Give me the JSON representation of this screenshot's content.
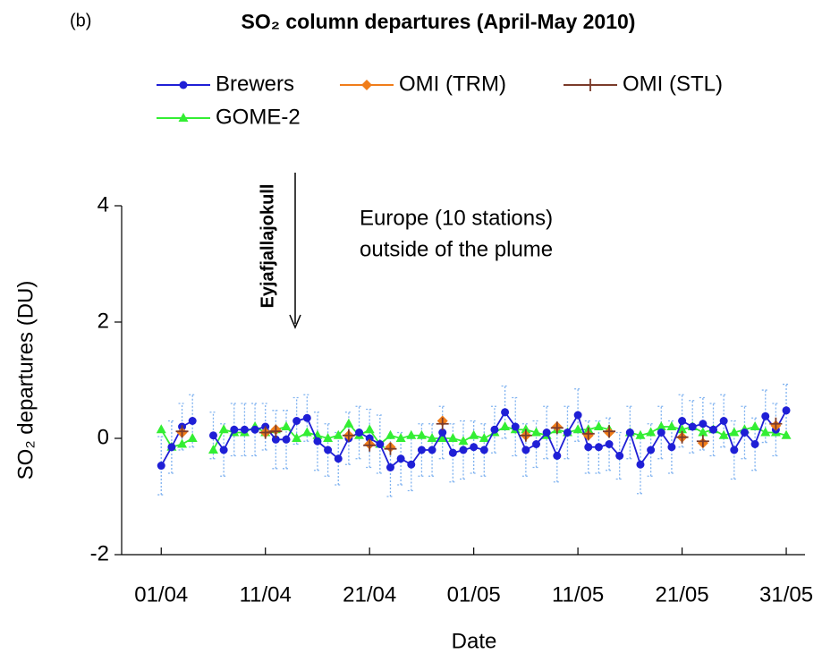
{
  "chart_data": {
    "type": "line",
    "panel_label": "(b)",
    "title": "SO₂ column departures (April-May 2010)",
    "x_label": "Date",
    "y_label": "SO₂ departures (DU)",
    "annotations": {
      "volcano": "Eyjafjallajokull",
      "region": [
        "Europe (10 stations)",
        "outside of the plume"
      ]
    },
    "x": [
      0,
      1,
      2,
      3,
      4,
      5,
      6,
      7,
      8,
      9,
      10,
      11,
      12,
      13,
      14,
      15,
      16,
      17,
      18,
      19,
      20,
      21,
      22,
      23,
      24,
      25,
      26,
      27,
      28,
      29,
      30,
      31,
      32,
      33,
      34,
      35,
      36,
      37,
      38,
      39,
      40,
      41,
      42,
      43,
      44,
      45,
      46,
      47,
      48,
      49,
      50,
      51,
      52,
      53,
      54,
      55,
      56,
      57,
      58,
      59,
      60
    ],
    "xlim": [
      -3.8,
      61.8
    ],
    "xticks": [
      {
        "value": 0,
        "label": "01/04"
      },
      {
        "value": 10,
        "label": "11/04"
      },
      {
        "value": 20,
        "label": "21/04"
      },
      {
        "value": 30,
        "label": "01/05"
      },
      {
        "value": 40,
        "label": "11/05"
      },
      {
        "value": 50,
        "label": "21/05"
      },
      {
        "value": 60,
        "label": "31/05"
      }
    ],
    "ylim": [
      -2,
      4
    ],
    "yticks": [
      -2,
      0,
      2,
      4
    ],
    "series": [
      {
        "name": "Brewers",
        "color": "#1f1fd6",
        "marker": "circle",
        "error_color": "#7fb2f0",
        "values": [
          -0.47,
          -0.15,
          0.2,
          0.3,
          null,
          0.05,
          -0.2,
          0.15,
          0.15,
          0.15,
          0.2,
          -0.02,
          -0.02,
          0.3,
          0.35,
          -0.05,
          -0.2,
          -0.35,
          0,
          0.1,
          0,
          -0.1,
          -0.5,
          -0.35,
          -0.45,
          -0.2,
          -0.2,
          0.1,
          -0.25,
          -0.2,
          -0.15,
          -0.2,
          0.15,
          0.45,
          0.2,
          -0.2,
          -0.1,
          0.1,
          -0.3,
          0.1,
          0.4,
          -0.15,
          -0.15,
          -0.1,
          -0.3,
          0.1,
          -0.45,
          -0.2,
          0.1,
          -0.15,
          0.3,
          0.2,
          0.25,
          0.15,
          0.3,
          -0.2,
          0.1,
          -0.1,
          0.38,
          0.15,
          0.48
        ],
        "errors": [
          0.5,
          0.45,
          0.4,
          0.45,
          null,
          0.4,
          0.45,
          0.45,
          0.45,
          0.45,
          0.4,
          0.5,
          0.5,
          0.4,
          0.4,
          0.5,
          0.45,
          0.45,
          0.45,
          0.45,
          0.5,
          0.5,
          0.5,
          0.45,
          0.45,
          0.45,
          0.45,
          0.45,
          0.5,
          0.5,
          0.45,
          0.45,
          0.4,
          0.45,
          0.5,
          0.45,
          0.4,
          0.45,
          0.45,
          0.45,
          0.45,
          0.45,
          0.45,
          0.45,
          0.4,
          0.45,
          0.5,
          0.45,
          0.45,
          0.45,
          0.45,
          0.45,
          0.45,
          0.45,
          0.45,
          0.5,
          0.45,
          0.45,
          0.45,
          0.45,
          0.45
        ]
      },
      {
        "name": "OMI (TRM)",
        "color": "#f07d1a",
        "marker": "diamond",
        "values": [
          null,
          null,
          0.1,
          null,
          null,
          null,
          null,
          null,
          null,
          null,
          0.1,
          0.15,
          null,
          null,
          null,
          null,
          null,
          null,
          0.05,
          null,
          -0.1,
          null,
          -0.15,
          null,
          null,
          null,
          null,
          0.3,
          null,
          null,
          null,
          null,
          null,
          null,
          null,
          0.05,
          null,
          null,
          0.2,
          null,
          null,
          0.05,
          null,
          0.1,
          null,
          null,
          null,
          null,
          null,
          null,
          0.02,
          null,
          -0.08,
          null,
          null,
          null,
          null,
          null,
          null,
          0.22,
          null
        ]
      },
      {
        "name": "OMI (STL)",
        "color": "#7b3b2a",
        "marker": "plus",
        "values": [
          null,
          null,
          0.12,
          null,
          null,
          null,
          null,
          null,
          null,
          null,
          0.1,
          0.12,
          null,
          null,
          null,
          null,
          null,
          null,
          0.05,
          null,
          -0.12,
          null,
          -0.18,
          null,
          null,
          null,
          null,
          0.25,
          null,
          null,
          null,
          null,
          null,
          null,
          null,
          0.05,
          null,
          null,
          0.18,
          null,
          null,
          0.08,
          null,
          0.12,
          null,
          null,
          null,
          null,
          null,
          null,
          0.02,
          null,
          -0.05,
          null,
          null,
          null,
          null,
          null,
          null,
          0.25,
          null
        ]
      },
      {
        "name": "GOME-2",
        "color": "#33ee33",
        "marker": "triangle",
        "values": [
          0.15,
          -0.15,
          -0.1,
          0,
          null,
          -0.2,
          0.15,
          0.1,
          0.1,
          0.2,
          0.1,
          0.15,
          0.2,
          0,
          0.1,
          0.05,
          0,
          0.05,
          0.25,
          0.05,
          0.15,
          -0.1,
          0.05,
          0,
          0.05,
          0.05,
          0,
          0,
          0,
          -0.05,
          0.05,
          0,
          0.1,
          0.2,
          0.15,
          0.15,
          0.1,
          0.05,
          0.15,
          0.1,
          0.15,
          0.15,
          0.2,
          0.15,
          null,
          0.1,
          0.05,
          0.1,
          0.2,
          0.2,
          0.15,
          0.2,
          0.1,
          0.15,
          0.05,
          0.1,
          0.15,
          0.2,
          0.1,
          0.1,
          0.05
        ]
      }
    ]
  }
}
